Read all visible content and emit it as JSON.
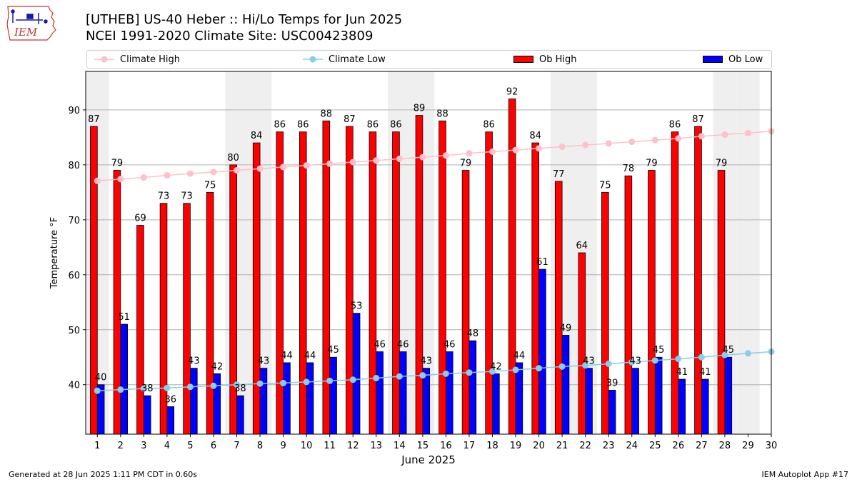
{
  "header": {
    "title_line1": "[UTHEB] US-40 Heber  :: Hi/Lo Temps for Jun 2025",
    "title_line2": "NCEI 1991-2020 Climate Site: USC00423809",
    "logo_text": "IEM"
  },
  "footer": {
    "left": "Generated at 28 Jun 2025 1:11 PM CDT in 0.60s",
    "right": "IEM Autoplot App #17"
  },
  "colors": {
    "ob_high": "#ff0000",
    "ob_low": "#0000ff",
    "climate_high": "#ffc0cb",
    "climate_low": "#87ceeb",
    "weekend_shade": "#efefef",
    "grid": "#b0b0b0"
  },
  "chart_data": {
    "type": "bar",
    "xlabel": "June 2025",
    "ylabel": "Temperature °F",
    "ylim": [
      31,
      97
    ],
    "yticks": [
      40,
      50,
      60,
      70,
      80,
      90
    ],
    "categories": [
      1,
      2,
      3,
      4,
      5,
      6,
      7,
      8,
      9,
      10,
      11,
      12,
      13,
      14,
      15,
      16,
      17,
      18,
      19,
      20,
      21,
      22,
      23,
      24,
      25,
      26,
      27,
      28,
      29,
      30
    ],
    "shaded_days": [
      1,
      7,
      8,
      14,
      15,
      21,
      22,
      28,
      29
    ],
    "grid": "horizontal",
    "legend_position": "top",
    "series": [
      {
        "name": "Climate High",
        "kind": "line",
        "values": [
          77.1,
          77.4,
          77.7,
          78.1,
          78.4,
          78.7,
          79.0,
          79.3,
          79.6,
          79.9,
          80.2,
          80.5,
          80.8,
          81.1,
          81.4,
          81.7,
          82.1,
          82.4,
          82.7,
          83.0,
          83.3,
          83.6,
          83.9,
          84.2,
          84.5,
          84.8,
          85.2,
          85.5,
          85.8,
          86.1
        ]
      },
      {
        "name": "Climate Low",
        "kind": "line",
        "values": [
          38.9,
          39.1,
          39.3,
          39.4,
          39.6,
          39.8,
          40.0,
          40.2,
          40.3,
          40.5,
          40.7,
          40.9,
          41.2,
          41.5,
          41.7,
          42.0,
          42.2,
          42.4,
          42.7,
          43.0,
          43.3,
          43.5,
          43.8,
          44.1,
          44.4,
          44.7,
          45.0,
          45.4,
          45.7,
          46.0
        ]
      },
      {
        "name": "Ob High",
        "kind": "bar",
        "values": [
          87,
          79,
          69,
          73,
          73,
          75,
          80,
          84,
          86,
          86,
          88,
          87,
          86,
          86,
          89,
          88,
          79,
          86,
          92,
          84,
          77,
          64,
          75,
          78,
          79,
          86,
          87,
          79,
          null,
          null
        ]
      },
      {
        "name": "Ob Low",
        "kind": "bar",
        "values": [
          40,
          51,
          38,
          36,
          43,
          42,
          38,
          43,
          44,
          44,
          45,
          53,
          46,
          46,
          43,
          46,
          48,
          42,
          44,
          61,
          49,
          43,
          39,
          43,
          45,
          41,
          41,
          45,
          null,
          null
        ]
      }
    ]
  }
}
